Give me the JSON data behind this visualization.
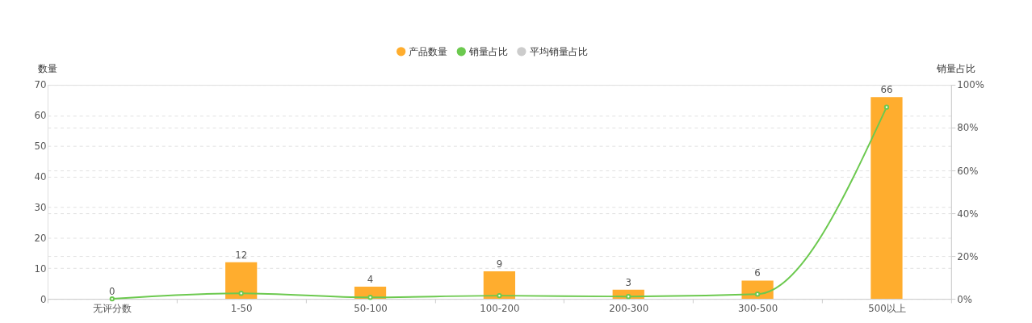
{
  "chart_data": {
    "type": "bar",
    "categories": [
      "无评分数",
      "1-50",
      "50-100",
      "100-200",
      "200-300",
      "300-500",
      "500以上"
    ],
    "ylabel": "数量",
    "y2label": "销量占比",
    "ylim": [
      0,
      70
    ],
    "yticks": [
      0,
      10,
      20,
      30,
      40,
      50,
      60,
      70
    ],
    "y2lim": [
      0,
      100
    ],
    "y2ticks": [
      {
        "value": 0,
        "label": "0%"
      },
      {
        "value": 20,
        "label": "20%"
      },
      {
        "value": 40,
        "label": "40%"
      },
      {
        "value": 60,
        "label": "60%"
      },
      {
        "value": 80,
        "label": "80%"
      },
      {
        "value": 100,
        "label": "100%"
      }
    ],
    "series": [
      {
        "name": "产品数量",
        "color": "#ffad2e",
        "values": [
          0,
          12,
          4,
          9,
          3,
          6,
          66
        ],
        "value_labels": [
          "0",
          "12",
          "4",
          "9",
          "3",
          "6",
          "66"
        ]
      },
      {
        "name": "销量占比",
        "type": "line",
        "axis": "y2",
        "color": "#6cc94f",
        "values": [
          0,
          2.6,
          0.7,
          1.5,
          1.1,
          2.2,
          89.6
        ]
      },
      {
        "name": "平均销量占比",
        "type": "line",
        "axis": "y2",
        "color": "#cccccc",
        "values": [
          null,
          null,
          null,
          null,
          null,
          null,
          null
        ]
      }
    ],
    "grid": true,
    "legend": "top",
    "marker": "circle"
  }
}
